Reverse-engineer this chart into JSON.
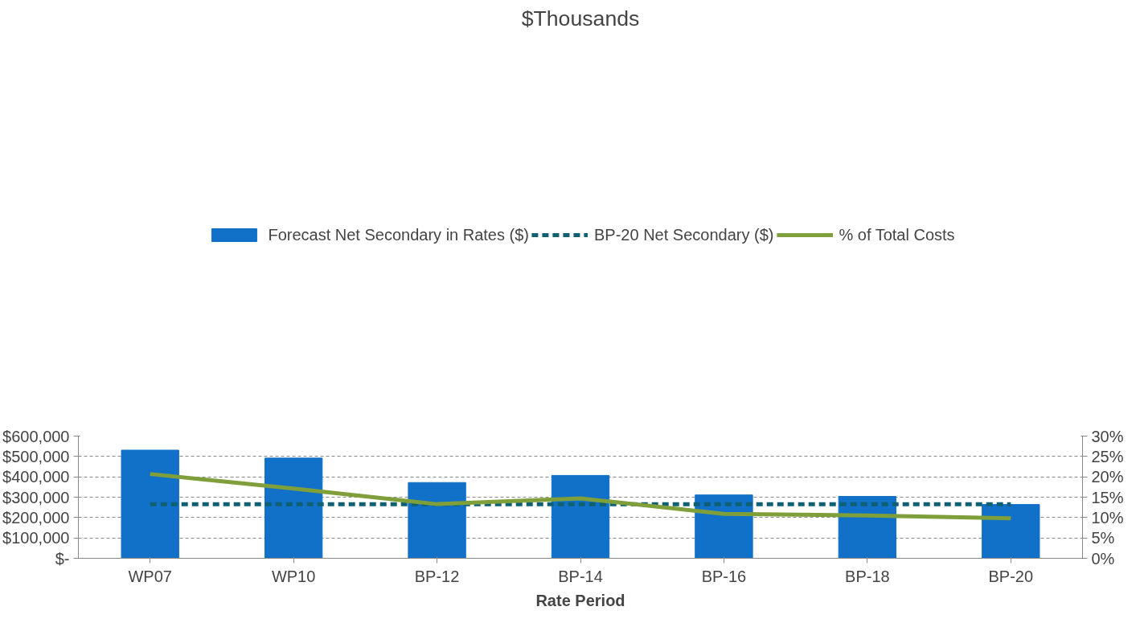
{
  "chart_data": {
    "type": "line",
    "title": "$Thousands",
    "xlabel": "Rate Period",
    "categories": [
      "WP07",
      "WP10",
      "BP-12",
      "BP-14",
      "BP-16",
      "BP-18",
      "BP-20"
    ],
    "series": [
      {
        "name": "Forecast Net Secondary in Rates ($)",
        "type": "bar",
        "color": "#1170c8",
        "values": [
          531000,
          492000,
          372000,
          407000,
          311000,
          304000,
          264000
        ]
      },
      {
        "name": "BP-20 Net Secondary ($)",
        "type": "line",
        "line_style": "dashed",
        "color": "#0f6073",
        "values": [
          265000,
          265000,
          265000,
          265000,
          265000,
          265000,
          265000
        ]
      },
      {
        "name": "% of Total Costs",
        "line_style": "solid",
        "axis": "y2",
        "color": "#7f9f3a",
        "values": [
          20.7,
          17.1,
          13.3,
          14.7,
          10.9,
          10.5,
          9.8
        ]
      }
    ],
    "ylim": [
      0,
      600000
    ],
    "yticks": [
      {
        "value": 0,
        "label": "$-"
      },
      {
        "value": 100000,
        "label": "$100,000"
      },
      {
        "value": 200000,
        "label": "$200,000"
      },
      {
        "value": 300000,
        "label": "$300,000"
      },
      {
        "value": 400000,
        "label": "$400,000"
      },
      {
        "value": 500000,
        "label": "$500,000"
      },
      {
        "value": 600000,
        "label": "$600,000"
      }
    ],
    "y2lim": [
      0,
      30
    ],
    "y2ticks": [
      {
        "value": 0,
        "label": "0%"
      },
      {
        "value": 5,
        "label": "5%"
      },
      {
        "value": 10,
        "label": "10%"
      },
      {
        "value": 15,
        "label": "15%"
      },
      {
        "value": 20,
        "label": "20%"
      },
      {
        "value": 25,
        "label": "25%"
      },
      {
        "value": 30,
        "label": "30%"
      }
    ],
    "grid": "y",
    "legend": "top",
    "marker": "none"
  }
}
